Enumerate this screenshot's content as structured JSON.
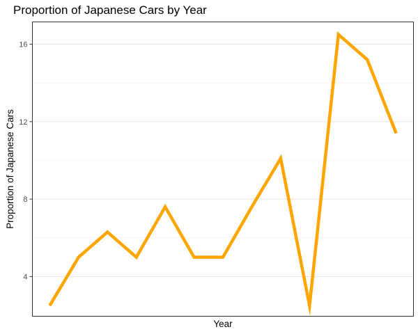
{
  "chart_data": {
    "type": "line",
    "title": "Proportion of Japanese Cars by Year",
    "xlabel": "Year",
    "ylabel": "Proportion of Japanese Cars",
    "x_tick_labels": [],
    "y_ticks": [
      4,
      8,
      12,
      16
    ],
    "y_tick_labels": [
      "4",
      "8",
      "12",
      "16"
    ],
    "ylim": [
      1.95,
      17.15
    ],
    "grid": "horizontal",
    "line_color": "#ffa500",
    "series": [
      {
        "values": [
          2.5,
          5.0,
          6.3,
          5.0,
          7.6,
          5.0,
          5.0,
          7.6,
          10.1,
          2.5,
          16.5,
          15.2,
          11.4
        ]
      }
    ]
  }
}
